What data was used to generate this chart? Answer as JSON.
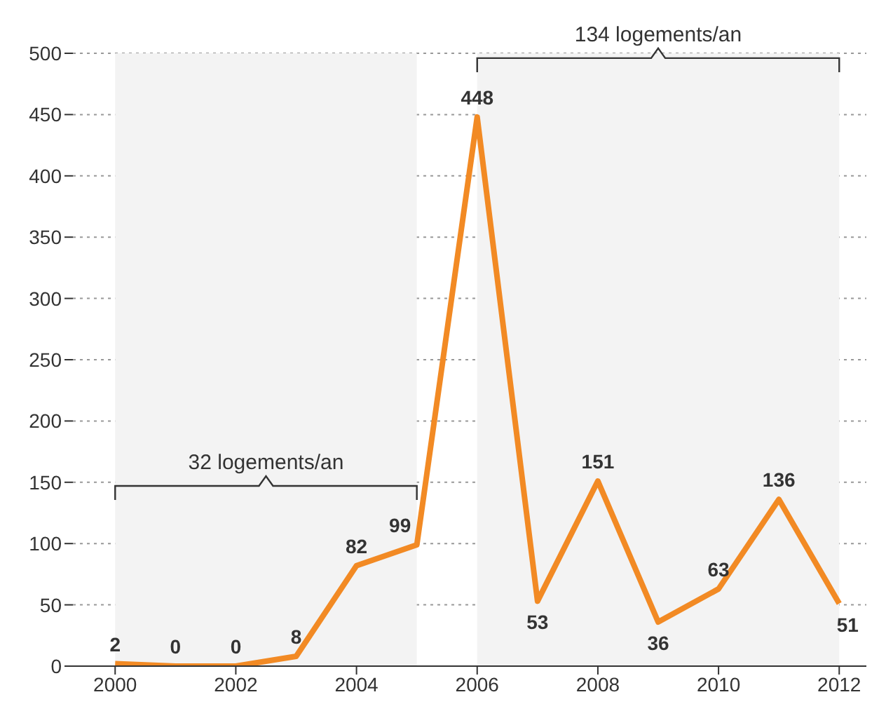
{
  "chart_data": {
    "type": "line",
    "x": [
      2000,
      2001,
      2002,
      2003,
      2004,
      2005,
      2006,
      2007,
      2008,
      2009,
      2010,
      2011,
      2012
    ],
    "series": [
      {
        "color": "#f28a24",
        "values": [
          2,
          0,
          0,
          8,
          82,
          99,
          448,
          53,
          151,
          36,
          63,
          136,
          51
        ]
      }
    ],
    "xlim": [
      1999.3,
      2012.45
    ],
    "xticks": [
      2000,
      2002,
      2004,
      2006,
      2008,
      2010,
      2012
    ],
    "ylim": [
      0,
      500
    ],
    "yticks": [
      0,
      50,
      100,
      150,
      200,
      250,
      300,
      350,
      400,
      450,
      500
    ],
    "grid": "y",
    "data_labels": true,
    "marker": "none",
    "line_style": "solid",
    "bands": [
      {
        "axis": "x",
        "from": 2000,
        "to": 2005,
        "label": "32 logements/an",
        "color": "#f3f3f3"
      },
      {
        "axis": "x",
        "from": 2006,
        "to": 2012,
        "label": "134 logements/an",
        "color": "#f3f3f3"
      }
    ]
  }
}
